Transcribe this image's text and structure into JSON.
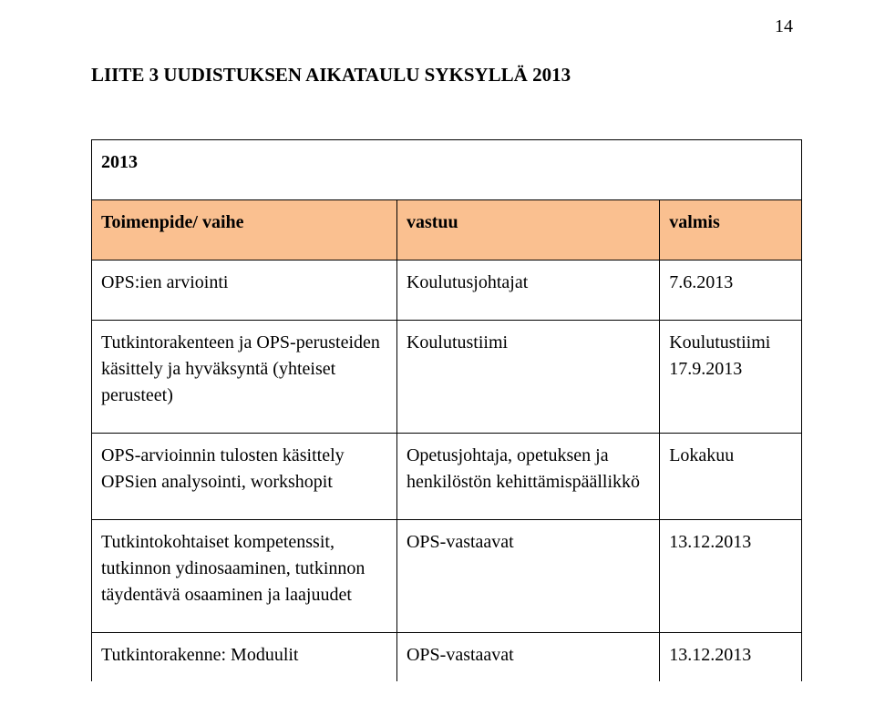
{
  "page_number": "14",
  "heading": "LIITE 3 UUDISTUKSEN AIKATAULU SYKSYLLÄ 2013",
  "table": {
    "year": "2013",
    "header": {
      "col1": "Toimenpide/ vaihe",
      "col2": "vastuu",
      "col3": "valmis"
    },
    "rows": [
      {
        "c1": "OPS:ien arviointi",
        "c2": "Koulutusjohtajat",
        "c3": "7.6.2013"
      },
      {
        "c1": "Tutkintorakenteen ja OPS-perusteiden käsittely ja hyväksyntä (yhteiset perusteet)",
        "c2": "Koulutustiimi",
        "c3": "Koulutustiimi 17.9.2013"
      },
      {
        "c1": "OPS-arvioinnin tulosten käsittely OPSien analysointi, workshopit",
        "c2": "Opetusjohtaja, opetuksen ja henkilöstön kehittämispäällikkö",
        "c3": "Lokakuu"
      },
      {
        "c1": "Tutkintokohtaiset kompetenssit, tutkinnon ydinosaaminen, tutkinnon täydentävä osaaminen ja laajuudet",
        "c2": "OPS-vastaavat",
        "c3": "13.12.2013"
      },
      {
        "c1": "Tutkintorakenne: Moduulit",
        "c2": "OPS-vastaavat",
        "c3": "13.12.2013"
      }
    ]
  },
  "colors": {
    "header_bg": "#fac090",
    "border": "#000000",
    "text": "#000000",
    "background": "#ffffff"
  }
}
